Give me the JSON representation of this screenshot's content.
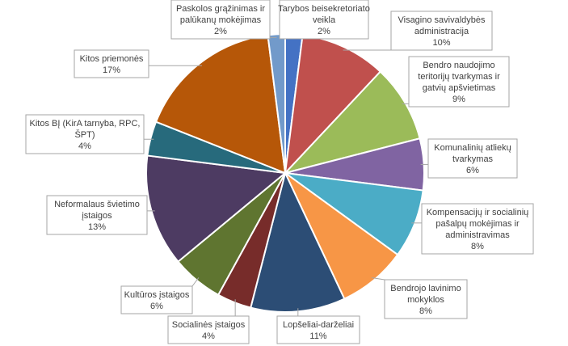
{
  "chart_data": {
    "type": "pie",
    "title": "",
    "start_angle_deg": 0,
    "direction": "clockwise",
    "slices": [
      {
        "label_lines": [
          "Tarybos beisekretoriato",
          "veikla"
        ],
        "percent_text": "2%",
        "value": 2,
        "color": "#4472c4"
      },
      {
        "label_lines": [
          "Visagino savivaldybės",
          "administracija"
        ],
        "percent_text": "10%",
        "value": 10,
        "color": "#c0504d"
      },
      {
        "label_lines": [
          "Bendro naudojimo",
          "teritorijų tvarkymas ir",
          "gatvių apšvietimas"
        ],
        "percent_text": "9%",
        "value": 9,
        "color": "#9bbb59"
      },
      {
        "label_lines": [
          "Komunalinių atliekų",
          "tvarkymas"
        ],
        "percent_text": "6%",
        "value": 6,
        "color": "#8064a2"
      },
      {
        "label_lines": [
          "Kompensacijų ir socialinių",
          "pašalpų mokėjimas ir",
          "administravimas"
        ],
        "percent_text": "8%",
        "value": 8,
        "color": "#4bacc6"
      },
      {
        "label_lines": [
          "Bendrojo lavinimo",
          "mokyklos"
        ],
        "percent_text": "8%",
        "value": 8,
        "color": "#f79646"
      },
      {
        "label_lines": [
          "Lopšeliai-darželiai"
        ],
        "percent_text": "11%",
        "value": 11,
        "color": "#2c4d75"
      },
      {
        "label_lines": [
          "Socialinės įstaigos"
        ],
        "percent_text": "4%",
        "value": 4,
        "color": "#772c2a"
      },
      {
        "label_lines": [
          "Kultūros įstaigos"
        ],
        "percent_text": "6%",
        "value": 6,
        "color": "#5f7530"
      },
      {
        "label_lines": [
          "Neformalaus švietimo",
          "įstaigos"
        ],
        "percent_text": "13%",
        "value": 13,
        "color": "#4d3b62"
      },
      {
        "label_lines": [
          "Kitos BĮ (KirA tarnyba, RPC,",
          "ŠPT)"
        ],
        "percent_text": "4%",
        "value": 4,
        "color": "#276a7c"
      },
      {
        "label_lines": [
          "Kitos priemonės"
        ],
        "percent_text": "17%",
        "value": 17,
        "color": "#b65708"
      },
      {
        "label_lines": [
          "Paskolos grąžinimas ir",
          "palūkanų mokėjimas"
        ],
        "percent_text": "2%",
        "value": 2,
        "color": "#729aca"
      }
    ]
  }
}
